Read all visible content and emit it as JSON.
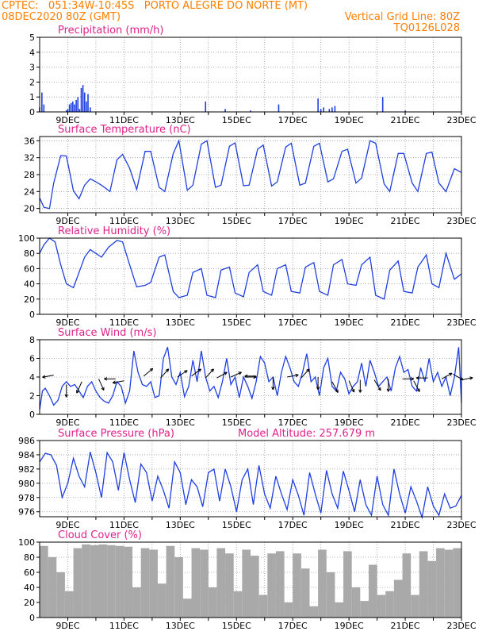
{
  "header": {
    "line1_left": "CPTEC:   051:34W-10:45S   PORTO ALEGRE DO NORTE (MT)",
    "line2_left": "08DEC2020 80Z (GMT)",
    "line2_right": "Vertical Grid Line: 80Z",
    "line3_right": "TQ0126L028"
  },
  "colors": {
    "header": "#ff7f00",
    "title": "#e0218a",
    "series": "#1f3fe0",
    "cloud": "#a9a9a9",
    "wind_arrow": "#000000"
  },
  "x_ticks": [
    "9DEC",
    "11DEC",
    "13DEC",
    "15DEC",
    "17DEC",
    "19DEC",
    "21DEC",
    "23DEC"
  ],
  "model_altitude": "Model Altitude: 257.679 m",
  "chart_data": [
    {
      "type": "bar",
      "title": "Precipitation (mm/h)",
      "ylim": [
        0,
        5
      ],
      "yticks": [
        "0",
        "1",
        "2",
        "3",
        "4",
        "5"
      ],
      "x_days": [
        8.0,
        8.08,
        8.15,
        8.95,
        9.0,
        9.06,
        9.12,
        9.18,
        9.24,
        9.3,
        9.36,
        9.42,
        9.48,
        9.54,
        9.6,
        9.66,
        9.72,
        9.8,
        13.9,
        14.6,
        15.5,
        16.5,
        17.9,
        18.0,
        18.1,
        18.3,
        18.4,
        18.5,
        20.2,
        21.0
      ],
      "values": [
        0.3,
        1.3,
        0.5,
        0.1,
        0.2,
        0.5,
        0.6,
        0.7,
        0.5,
        0.8,
        1.0,
        0.2,
        1.6,
        1.8,
        1.3,
        0.7,
        1.2,
        0.3,
        0.7,
        0.2,
        0.1,
        0.5,
        0.9,
        0.2,
        0.3,
        0.2,
        0.3,
        0.4,
        1.0,
        0.1
      ]
    },
    {
      "type": "line",
      "title": "Surface Temperature (nC)",
      "ylim": [
        19,
        37
      ],
      "yticks": [
        "20",
        "24",
        "28",
        "32",
        "36"
      ],
      "x_days": [
        8.0,
        8.15,
        8.35,
        8.5,
        8.75,
        8.95,
        9.2,
        9.4,
        9.6,
        9.8,
        10.0,
        10.2,
        10.5,
        10.75,
        10.95,
        11.2,
        11.45,
        11.75,
        11.95,
        12.25,
        12.45,
        12.75,
        12.95,
        13.25,
        13.45,
        13.75,
        13.95,
        14.25,
        14.45,
        14.75,
        14.95,
        15.25,
        15.45,
        15.75,
        15.95,
        16.25,
        16.45,
        16.75,
        16.95,
        17.25,
        17.45,
        17.75,
        17.95,
        18.25,
        18.45,
        18.75,
        18.95,
        19.25,
        19.45,
        19.75,
        19.95,
        20.25,
        20.45,
        20.75,
        20.95,
        21.25,
        21.45,
        21.75,
        21.95,
        22.2,
        22.45,
        22.75,
        23.0
      ],
      "values": [
        22.5,
        20.3,
        20.0,
        26.0,
        32.5,
        32.4,
        24.2,
        22.3,
        25.5,
        27.0,
        26.3,
        25.5,
        24.0,
        31.5,
        32.8,
        29.5,
        24.5,
        33.5,
        33.5,
        25.0,
        24.0,
        33.0,
        36.0,
        24.3,
        25.5,
        35.2,
        36.0,
        25.0,
        25.5,
        34.7,
        35.5,
        25.4,
        25.5,
        34.0,
        35.0,
        25.3,
        26.3,
        34.5,
        35.4,
        25.5,
        26.0,
        34.7,
        35.4,
        26.3,
        27.0,
        33.5,
        34.0,
        26.0,
        27.2,
        36.0,
        35.4,
        25.8,
        24.0,
        33.0,
        33.0,
        26.0,
        24.0,
        33.0,
        33.3,
        26.0,
        24.0,
        29.4,
        28.5
      ]
    },
    {
      "type": "line",
      "title": "Relative Humidity (%)",
      "ylim": [
        0,
        100
      ],
      "yticks": [
        "0",
        "20",
        "40",
        "60",
        "80",
        "100"
      ],
      "x_days": [
        8.0,
        8.15,
        8.35,
        8.55,
        8.75,
        8.95,
        9.2,
        9.4,
        9.6,
        9.8,
        10.0,
        10.2,
        10.45,
        10.75,
        10.95,
        11.2,
        11.45,
        11.75,
        11.95,
        12.25,
        12.45,
        12.75,
        12.95,
        13.25,
        13.45,
        13.75,
        13.95,
        14.25,
        14.45,
        14.75,
        14.95,
        15.25,
        15.45,
        15.75,
        15.95,
        16.25,
        16.45,
        16.75,
        16.95,
        17.25,
        17.45,
        17.75,
        17.95,
        18.25,
        18.45,
        18.75,
        18.95,
        19.25,
        19.45,
        19.75,
        19.95,
        20.25,
        20.45,
        20.75,
        20.95,
        21.25,
        21.45,
        21.75,
        21.95,
        22.2,
        22.45,
        22.75,
        23.0
      ],
      "values": [
        80,
        91,
        100,
        95,
        65,
        40,
        35,
        55,
        75,
        85,
        80,
        75,
        88,
        97,
        95,
        65,
        36,
        38,
        42,
        75,
        78,
        30,
        22,
        25,
        55,
        60,
        25,
        22,
        58,
        62,
        28,
        23,
        55,
        65,
        30,
        25,
        60,
        65,
        30,
        28,
        62,
        68,
        30,
        25,
        65,
        72,
        40,
        38,
        65,
        75,
        25,
        20,
        58,
        70,
        30,
        28,
        62,
        78,
        40,
        35,
        80,
        46,
        53
      ]
    },
    {
      "type": "line",
      "title": "Surface Wind (m/s)",
      "ylim": [
        0,
        8
      ],
      "yticks": [
        "0",
        "2",
        "4",
        "6",
        "8"
      ],
      "x_days": [
        8.0,
        8.1,
        8.2,
        8.35,
        8.5,
        8.65,
        8.8,
        8.95,
        9.1,
        9.25,
        9.4,
        9.55,
        9.7,
        9.85,
        10.0,
        10.15,
        10.3,
        10.45,
        10.6,
        10.75,
        10.9,
        11.05,
        11.2,
        11.35,
        11.5,
        11.65,
        11.8,
        11.95,
        12.1,
        12.25,
        12.4,
        12.55,
        12.7,
        12.85,
        13.0,
        13.15,
        13.3,
        13.45,
        13.6,
        13.75,
        13.9,
        14.05,
        14.2,
        14.35,
        14.5,
        14.65,
        14.8,
        14.95,
        15.1,
        15.25,
        15.4,
        15.55,
        15.7,
        15.85,
        16.0,
        16.15,
        16.3,
        16.45,
        16.6,
        16.75,
        16.9,
        17.05,
        17.2,
        17.35,
        17.5,
        17.65,
        17.8,
        17.95,
        18.1,
        18.25,
        18.4,
        18.55,
        18.7,
        18.85,
        19.0,
        19.15,
        19.3,
        19.45,
        19.6,
        19.75,
        19.9,
        20.05,
        20.2,
        20.35,
        20.5,
        20.65,
        20.8,
        20.95,
        21.1,
        21.25,
        21.4,
        21.55,
        21.7,
        21.85,
        22.0,
        22.15,
        22.3,
        22.45,
        22.6,
        22.75,
        22.9,
        23.0
      ],
      "values": [
        0.5,
        2.5,
        2.8,
        2.0,
        1.0,
        1.5,
        3.0,
        3.5,
        3.0,
        3.2,
        2.5,
        1.8,
        3.0,
        3.5,
        2.5,
        1.8,
        1.4,
        1.2,
        2.0,
        3.5,
        3.0,
        1.2,
        2.5,
        6.8,
        4.5,
        3.2,
        3.0,
        3.5,
        1.8,
        2.0,
        6.0,
        7.2,
        4.0,
        3.2,
        4.5,
        1.9,
        3.0,
        5.8,
        3.5,
        6.8,
        4.0,
        2.5,
        3.0,
        1.8,
        3.5,
        6.0,
        3.2,
        4.0,
        1.8,
        4.0,
        3.0,
        1.7,
        3.5,
        6.2,
        5.5,
        3.5,
        4.0,
        2.0,
        4.5,
        6.2,
        5.0,
        3.5,
        3.0,
        4.5,
        6.5,
        3.5,
        4.0,
        2.0,
        5.0,
        6.0,
        3.0,
        2.5,
        4.5,
        3.8,
        2.2,
        3.0,
        3.5,
        5.5,
        3.0,
        5.8,
        4.5,
        3.0,
        3.5,
        4.0,
        2.5,
        5.0,
        6.2,
        4.5,
        4.8,
        3.0,
        2.5,
        5.0,
        3.5,
        6.0,
        3.5,
        4.5,
        3.0,
        4.0,
        2.0,
        4.0,
        7.2,
        1.2
      ],
      "arrows": {
        "x_days": [
          8.5,
          8.95,
          9.5,
          10.1,
          10.7,
          11.0,
          11.7,
          12.3,
          12.9,
          13.4,
          13.9,
          14.3,
          14.8,
          15.3,
          15.7,
          16.3,
          16.8,
          17.3,
          17.9,
          18.4,
          19.0,
          19.4,
          19.9,
          20.4,
          20.9,
          21.3,
          21.8,
          22.3,
          22.7,
          23.0
        ],
        "y": [
          4.2,
          3.2,
          3.5,
          3.8,
          3.8,
          3.6,
          4.1,
          3.9,
          4.0,
          4.1,
          3.9,
          3.9,
          4.0,
          4.0,
          4.1,
          4.0,
          4.0,
          3.9,
          4.0,
          3.5,
          3.6,
          3.7,
          3.7,
          3.8,
          3.8,
          3.6,
          3.9,
          3.8,
          4.3,
          3.7
        ],
        "u": [
          -6,
          0,
          -2,
          2,
          -6,
          -6,
          4,
          5,
          5,
          6,
          5,
          6,
          5,
          6,
          -6,
          0,
          6,
          3,
          0,
          3,
          2,
          0,
          2,
          0,
          6,
          3,
          -6,
          6,
          6,
          6
        ],
        "v": [
          -1,
          -5,
          -4,
          -4,
          0,
          -1,
          3,
          5,
          3,
          4,
          5,
          3,
          2,
          0,
          0,
          -5,
          1,
          3,
          -5,
          -5,
          -4,
          -6,
          -3,
          -6,
          0,
          -5,
          0,
          3,
          -3,
          1
        ]
      }
    },
    {
      "type": "line",
      "title": "Surface Pressure (hPa)",
      "ylim": [
        975.3,
        986
      ],
      "yticks": [
        "976",
        "978",
        "980",
        "982",
        "984",
        "986"
      ],
      "x_days": [
        8.0,
        8.2,
        8.4,
        8.6,
        8.8,
        9.0,
        9.2,
        9.4,
        9.6,
        9.8,
        10.0,
        10.2,
        10.4,
        10.6,
        10.8,
        11.0,
        11.2,
        11.4,
        11.6,
        11.8,
        12.0,
        12.2,
        12.4,
        12.6,
        12.8,
        13.0,
        13.2,
        13.4,
        13.6,
        13.8,
        14.0,
        14.2,
        14.4,
        14.6,
        14.8,
        15.0,
        15.2,
        15.4,
        15.6,
        15.8,
        16.0,
        16.2,
        16.4,
        16.6,
        16.8,
        17.0,
        17.2,
        17.4,
        17.6,
        17.8,
        18.0,
        18.2,
        18.4,
        18.6,
        18.8,
        19.0,
        19.2,
        19.4,
        19.6,
        19.8,
        20.0,
        20.2,
        20.4,
        20.6,
        20.8,
        21.0,
        21.2,
        21.4,
        21.6,
        21.8,
        22.0,
        22.2,
        22.4,
        22.6,
        22.8,
        23.0
      ],
      "values": [
        983.0,
        984.2,
        984.0,
        982.5,
        978.0,
        980.0,
        983.5,
        981.0,
        979.5,
        984.4,
        981.5,
        978.0,
        984.3,
        983.0,
        979.0,
        984.3,
        980.5,
        977.3,
        982.7,
        981.5,
        977.5,
        981.0,
        979.0,
        976.5,
        983.0,
        981.5,
        977.0,
        980.5,
        979.5,
        976.7,
        981.5,
        982.0,
        977.5,
        982.0,
        979.5,
        976.0,
        980.5,
        982.0,
        977.0,
        982.5,
        978.5,
        976.5,
        981.0,
        978.5,
        976.3,
        980.5,
        978.3,
        975.5,
        981.5,
        978.5,
        975.8,
        981.8,
        978.5,
        976.5,
        981.7,
        979.0,
        976.0,
        980.5,
        977.0,
        975.5,
        981.0,
        977.0,
        975.5,
        982.0,
        978.5,
        975.8,
        979.5,
        977.5,
        975.2,
        979.5,
        976.8,
        975.5,
        978.5,
        976.5,
        976.8,
        978.3
      ]
    },
    {
      "type": "area",
      "title": "Cloud Cover (%)",
      "ylim": [
        0,
        100
      ],
      "yticks": [
        "0",
        "20",
        "40",
        "60",
        "80",
        "100"
      ],
      "x_days": [
        8.0,
        8.3,
        8.6,
        8.9,
        9.2,
        9.5,
        9.8,
        10.1,
        10.4,
        10.7,
        11.0,
        11.3,
        11.6,
        11.9,
        12.2,
        12.5,
        12.8,
        13.1,
        13.4,
        13.7,
        14.0,
        14.3,
        14.6,
        14.9,
        15.2,
        15.5,
        15.8,
        16.1,
        16.4,
        16.7,
        17.0,
        17.3,
        17.6,
        17.9,
        18.2,
        18.5,
        18.8,
        19.1,
        19.4,
        19.7,
        20.0,
        20.3,
        20.6,
        20.9,
        21.2,
        21.5,
        21.8,
        22.1,
        22.4,
        22.7,
        23.0
      ],
      "values": [
        95,
        80,
        60,
        35,
        92,
        97,
        96,
        97,
        96,
        95,
        94,
        40,
        92,
        90,
        45,
        95,
        80,
        25,
        92,
        90,
        40,
        92,
        85,
        35,
        90,
        82,
        30,
        85,
        88,
        20,
        85,
        65,
        15,
        90,
        60,
        20,
        88,
        40,
        22,
        70,
        30,
        35,
        50,
        85,
        30,
        88,
        75,
        92,
        90,
        92,
        95
      ]
    }
  ]
}
